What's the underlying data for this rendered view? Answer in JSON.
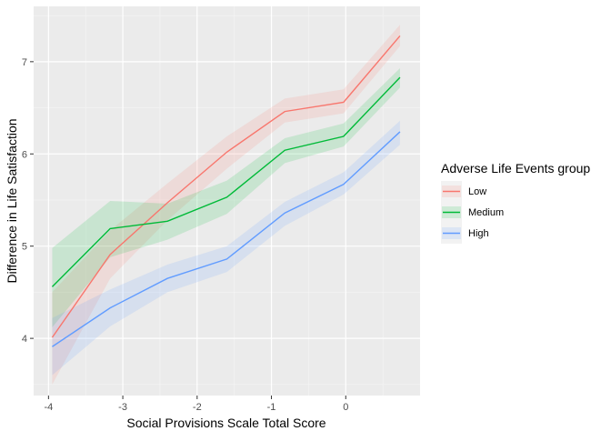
{
  "chart_data": {
    "type": "line",
    "xlabel": "Social Provisions Scale Total Score",
    "ylabel": "Difference in Life Satisfaction",
    "xlim": [
      -4.2,
      1.0
    ],
    "ylim": [
      3.38,
      7.6
    ],
    "x_ticks": [
      -4,
      -3,
      -2,
      -1,
      0
    ],
    "y_ticks": [
      4,
      5,
      6,
      7
    ],
    "x_tick_labels": [
      "-4",
      "-3",
      "-2",
      "-1",
      "0"
    ],
    "y_tick_labels": [
      "4",
      "5",
      "6",
      "7"
    ],
    "grid": true,
    "legend": {
      "title": "Adverse Life Events group",
      "placement": "right"
    },
    "x": [
      -3.95,
      -3.17,
      -2.4,
      -1.6,
      -0.82,
      -0.03,
      0.73
    ],
    "series": [
      {
        "name": "Low",
        "color": "#F8766D",
        "values": [
          4.01,
          4.91,
          5.47,
          6.02,
          6.46,
          6.56,
          7.28
        ],
        "lower": [
          3.5,
          4.65,
          5.28,
          5.84,
          6.34,
          6.44,
          7.17
        ],
        "upper": [
          4.5,
          5.17,
          5.68,
          6.19,
          6.6,
          6.7,
          7.4
        ]
      },
      {
        "name": "Medium",
        "color": "#00BA38",
        "values": [
          4.56,
          5.19,
          5.27,
          5.53,
          6.04,
          6.19,
          6.83
        ],
        "lower": [
          4.12,
          4.88,
          5.07,
          5.35,
          5.9,
          6.08,
          6.72
        ],
        "upper": [
          4.98,
          5.49,
          5.46,
          5.71,
          6.17,
          6.33,
          6.93
        ]
      },
      {
        "name": "High",
        "color": "#619CFF",
        "values": [
          3.91,
          4.33,
          4.65,
          4.86,
          5.36,
          5.67,
          6.24
        ],
        "lower": [
          3.6,
          4.13,
          4.5,
          4.72,
          5.22,
          5.56,
          6.1
        ],
        "upper": [
          4.22,
          4.53,
          4.8,
          5.0,
          5.48,
          5.8,
          6.36
        ]
      }
    ]
  }
}
